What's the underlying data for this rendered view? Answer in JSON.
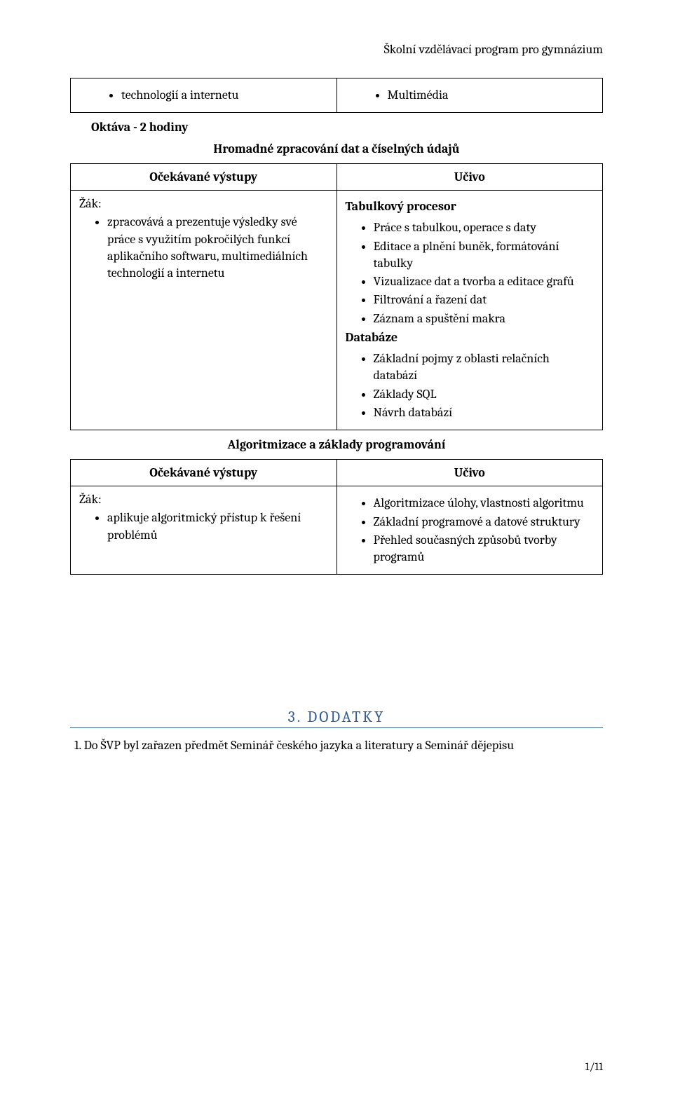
{
  "header": {
    "running": "Školní vzdělávací program pro gymnázium"
  },
  "table1": {
    "left": {
      "items": [
        "technologií a internetu"
      ]
    },
    "right": {
      "items": [
        "Multimédia"
      ]
    }
  },
  "section1": {
    "title": "Oktáva - 2 hodiny",
    "subtitle": "Hromadné zpracování dat a číselných údajů"
  },
  "table2": {
    "head": {
      "left": "Očekávané výstupy",
      "right": "Učivo"
    },
    "left": {
      "lead": "Žák:",
      "items": [
        "zpracovává a prezentuje výsledky své práce s využitím pokročilých funkcí aplikačního softwaru, multimediálních technologií a internetu"
      ]
    },
    "right": {
      "heading1": "Tabulkový procesor",
      "items1": [
        "Práce s tabulkou, operace s daty",
        "Editace a plnění buněk, formátování tabulky",
        "Vizualizace dat a tvorba a editace grafů",
        "Filtrování a řazení dat",
        "Záznam a spuštění makra"
      ],
      "heading2": "Databáze",
      "items2": [
        "Základní pojmy z oblasti relačních databází",
        "Základy SQL",
        "Návrh databází"
      ]
    }
  },
  "section2": {
    "subtitle": "Algoritmizace a základy programování"
  },
  "table3": {
    "head": {
      "left": "Očekávané výstupy",
      "right": "Učivo"
    },
    "left": {
      "lead": "Žák:",
      "items": [
        "aplikuje algoritmický přístup k řešení problémů"
      ]
    },
    "right": {
      "items": [
        "Algoritmizace úlohy, vlastnosti algoritmu",
        "Základní programové a datové struktury",
        "Přehled současných způsobů tvorby programů"
      ]
    }
  },
  "dodatky": {
    "title": "3. DODATKY",
    "text": "1. Do ŠVP byl zařazen předmět Seminář českého jazyka a literatury a Seminář dějepisu"
  },
  "footer": {
    "page": "1/11"
  }
}
